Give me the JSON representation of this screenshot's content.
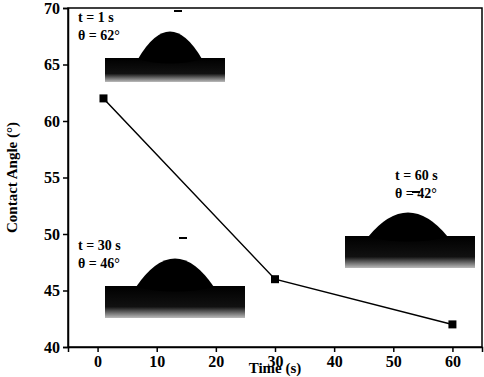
{
  "chart_data": {
    "type": "line",
    "x_label": "Time (s)",
    "y_label": "Contact Angle (°)",
    "x": [
      1,
      30,
      60
    ],
    "values": [
      62,
      46,
      42
    ],
    "color": "#000000",
    "marker": "square",
    "line_style": "solid",
    "xlim": [
      -5,
      65
    ],
    "xticks": [
      0,
      10,
      20,
      30,
      40,
      50,
      60
    ],
    "ylim": [
      40,
      70
    ],
    "yticks": [
      40,
      45,
      50,
      55,
      60,
      65,
      70
    ],
    "grid": false,
    "annotations": [
      [
        "t = 1 s",
        "θ = 62°"
      ],
      [
        "t = 30 s",
        "θ = 46°"
      ],
      [
        "t = 60 s",
        "θ = 42°"
      ]
    ]
  }
}
